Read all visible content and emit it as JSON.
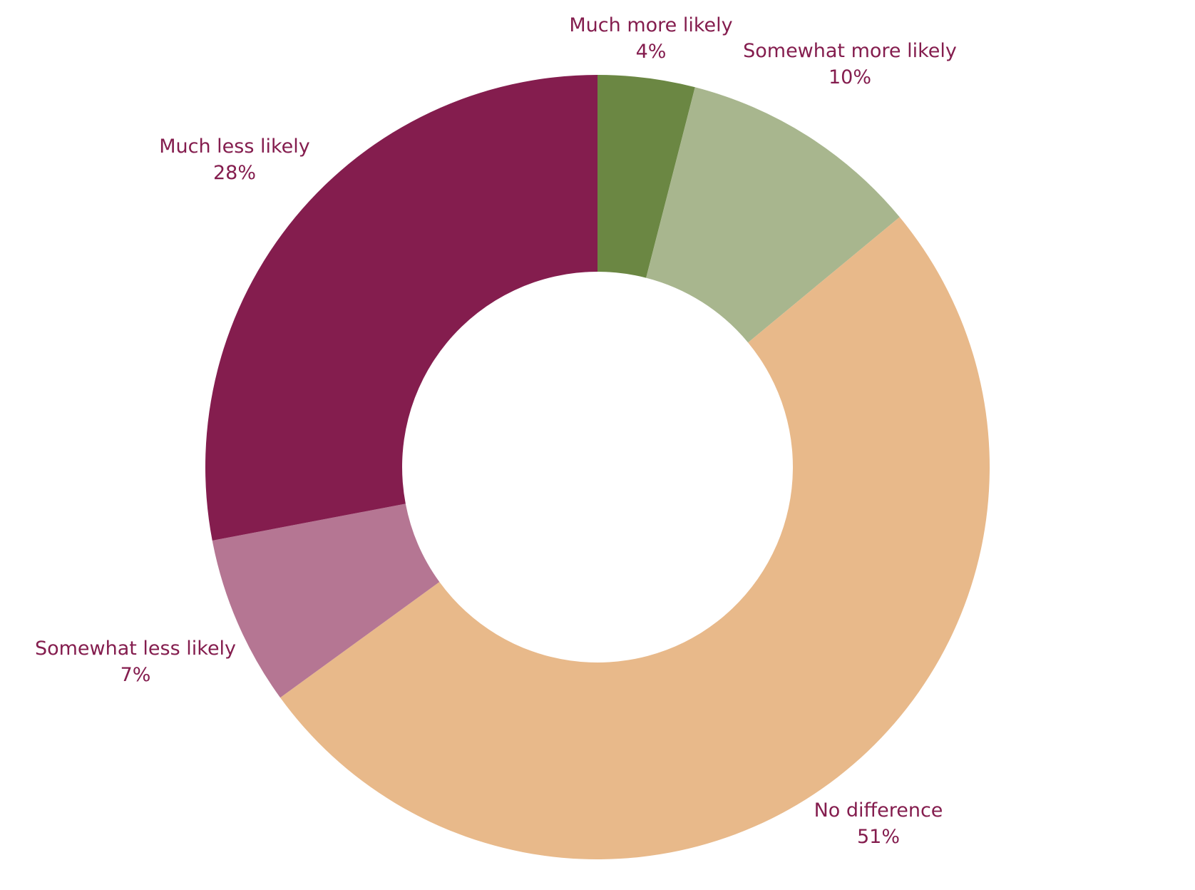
{
  "chart_data": {
    "type": "pie",
    "variant": "donut",
    "start_angle_deg": 0,
    "direction": "clockwise",
    "label_color": "#841d4e",
    "slices": [
      {
        "label": "Much more likely",
        "value": 4,
        "value_label": "4%",
        "color": "#6b8743"
      },
      {
        "label": "Somewhat more likely",
        "value": 10,
        "value_label": "10%",
        "color": "#a8b68e"
      },
      {
        "label": "No difference",
        "value": 51,
        "value_label": "51%",
        "color": "#e8b98a"
      },
      {
        "label": "Somewhat less likely",
        "value": 7,
        "value_label": "7%",
        "color": "#b57693"
      },
      {
        "label": "Much less likely",
        "value": 28,
        "value_label": "28%",
        "color": "#841d4e"
      }
    ]
  }
}
